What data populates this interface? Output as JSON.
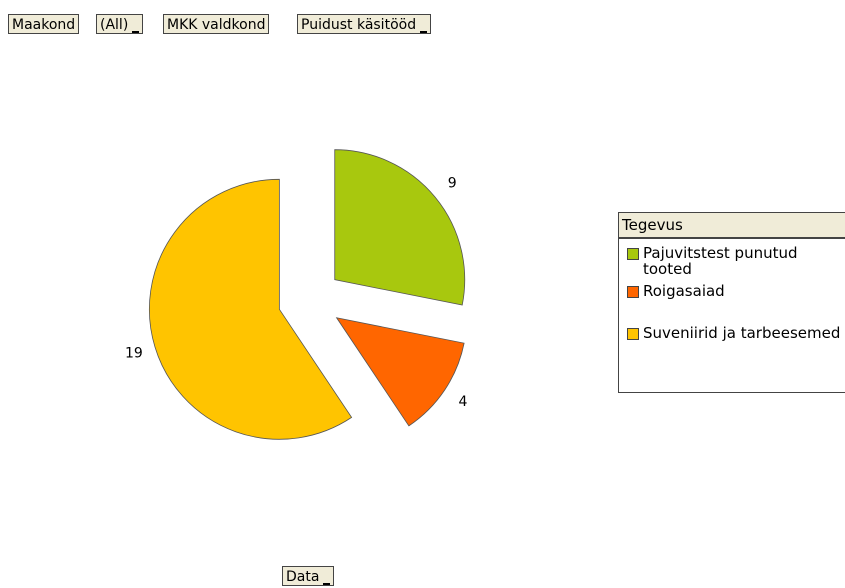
{
  "filters": [
    {
      "field": "Maakond",
      "value": "(All)"
    },
    {
      "field": "MKK valdkond",
      "value": "Puidust käsitööd"
    }
  ],
  "data_button": "Data",
  "chart_data": {
    "type": "pie",
    "legend_title": "Tegevus",
    "categories": [
      "Pajuvitstest punutud tooted",
      "Roigasaiad",
      "Suveniirid ja tarbeesemed"
    ],
    "values": [
      9,
      4,
      19
    ],
    "colors": [
      "#a8c80e",
      "#ff6600",
      "#ffc400"
    ],
    "legend": "right"
  }
}
